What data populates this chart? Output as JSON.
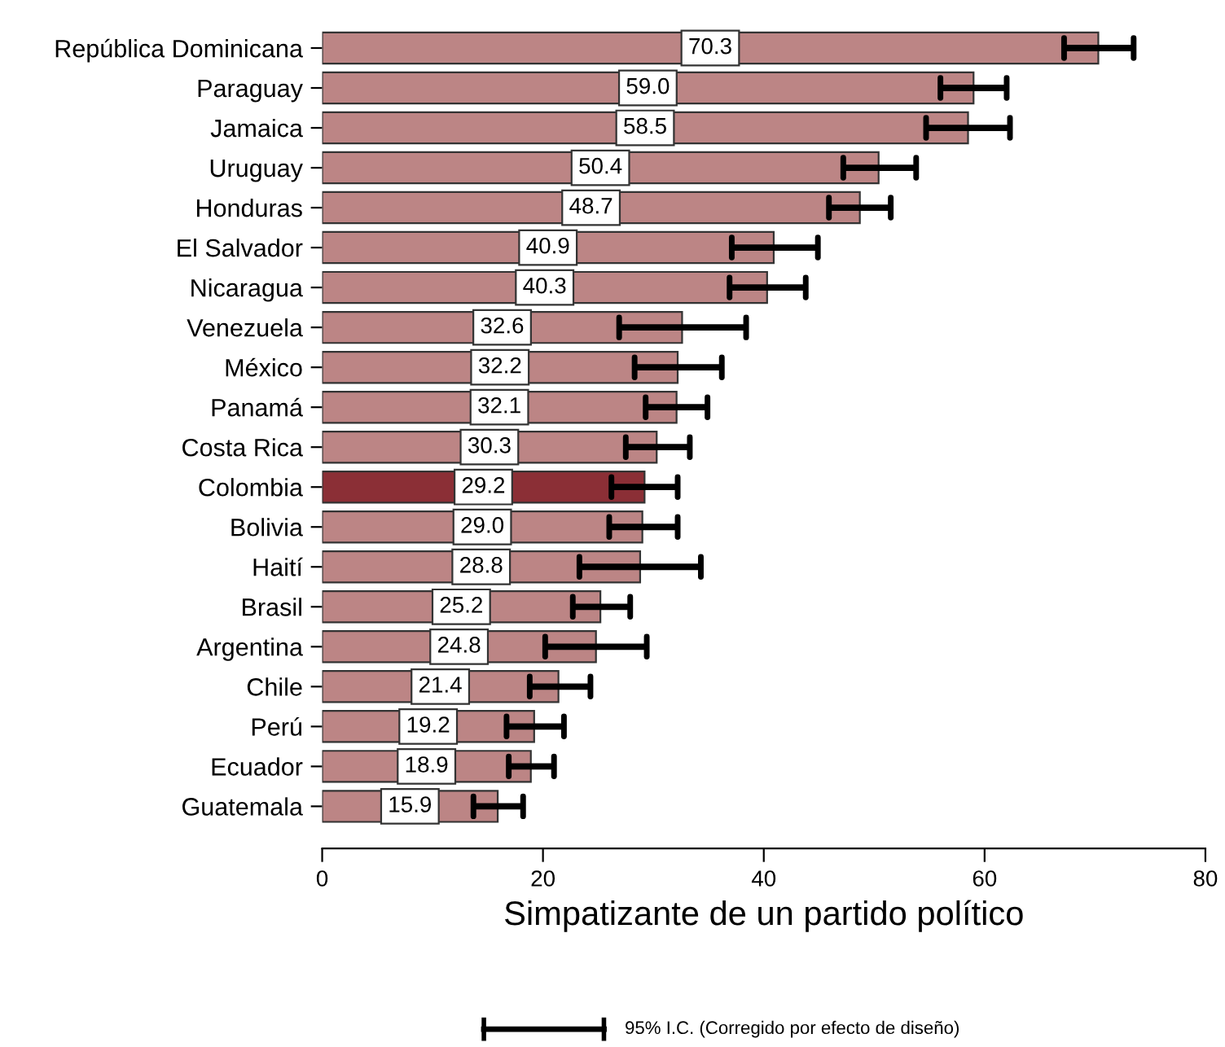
{
  "chart_data": {
    "type": "bar",
    "orientation": "horizontal",
    "xlabel": "Simpatizante de un partido político",
    "categories": [
      "República Dominicana",
      "Paraguay",
      "Jamaica",
      "Uruguay",
      "Honduras",
      "El Salvador",
      "Nicaragua",
      "Venezuela",
      "México",
      "Panamá",
      "Costa Rica",
      "Colombia",
      "Bolivia",
      "Haití",
      "Brasil",
      "Argentina",
      "Chile",
      "Perú",
      "Ecuador",
      "Guatemala"
    ],
    "values": [
      70.3,
      59.0,
      58.5,
      50.4,
      48.7,
      40.9,
      40.3,
      32.6,
      32.2,
      32.1,
      30.3,
      29.2,
      29.0,
      28.8,
      25.2,
      24.8,
      21.4,
      19.2,
      18.9,
      15.9
    ],
    "colors": [
      "#bc8585",
      "#bc8585",
      "#bc8585",
      "#bc8585",
      "#bc8585",
      "#bc8585",
      "#bc8585",
      "#bc8585",
      "#bc8585",
      "#bc8585",
      "#bc8585",
      "#8b2f36",
      "#bc8585",
      "#bc8585",
      "#bc8585",
      "#bc8585",
      "#bc8585",
      "#bc8585",
      "#bc8585",
      "#bc8585"
    ],
    "errors": [
      [
        67.2,
        73.5
      ],
      [
        56.0,
        62.0
      ],
      [
        54.7,
        62.3
      ],
      [
        47.2,
        53.8
      ],
      [
        45.9,
        51.5
      ],
      [
        37.1,
        44.9
      ],
      [
        36.9,
        43.8
      ],
      [
        26.9,
        38.4
      ],
      [
        28.3,
        36.2
      ],
      [
        29.3,
        34.9
      ],
      [
        27.5,
        33.3
      ],
      [
        26.2,
        32.2
      ],
      [
        26.0,
        32.2
      ],
      [
        23.3,
        34.3
      ],
      [
        22.7,
        27.9
      ],
      [
        20.2,
        29.4
      ],
      [
        18.8,
        24.3
      ],
      [
        16.7,
        21.9
      ],
      [
        16.9,
        21.0
      ],
      [
        13.7,
        18.2
      ]
    ],
    "value_labels": [
      "70.3",
      "59.0",
      "58.5",
      "50.4",
      "48.7",
      "40.9",
      "40.3",
      "32.6",
      "32.2",
      "32.1",
      "30.3",
      "29.2",
      "29.0",
      "28.8",
      "25.2",
      "24.8",
      "21.4",
      "19.2",
      "18.9",
      "15.9"
    ],
    "xlim": [
      0,
      80
    ],
    "xticks": [
      0,
      20,
      40,
      60,
      80
    ],
    "grid": false,
    "annotations": [
      "95% I.C. (Corregido por efecto de diseño)"
    ]
  }
}
